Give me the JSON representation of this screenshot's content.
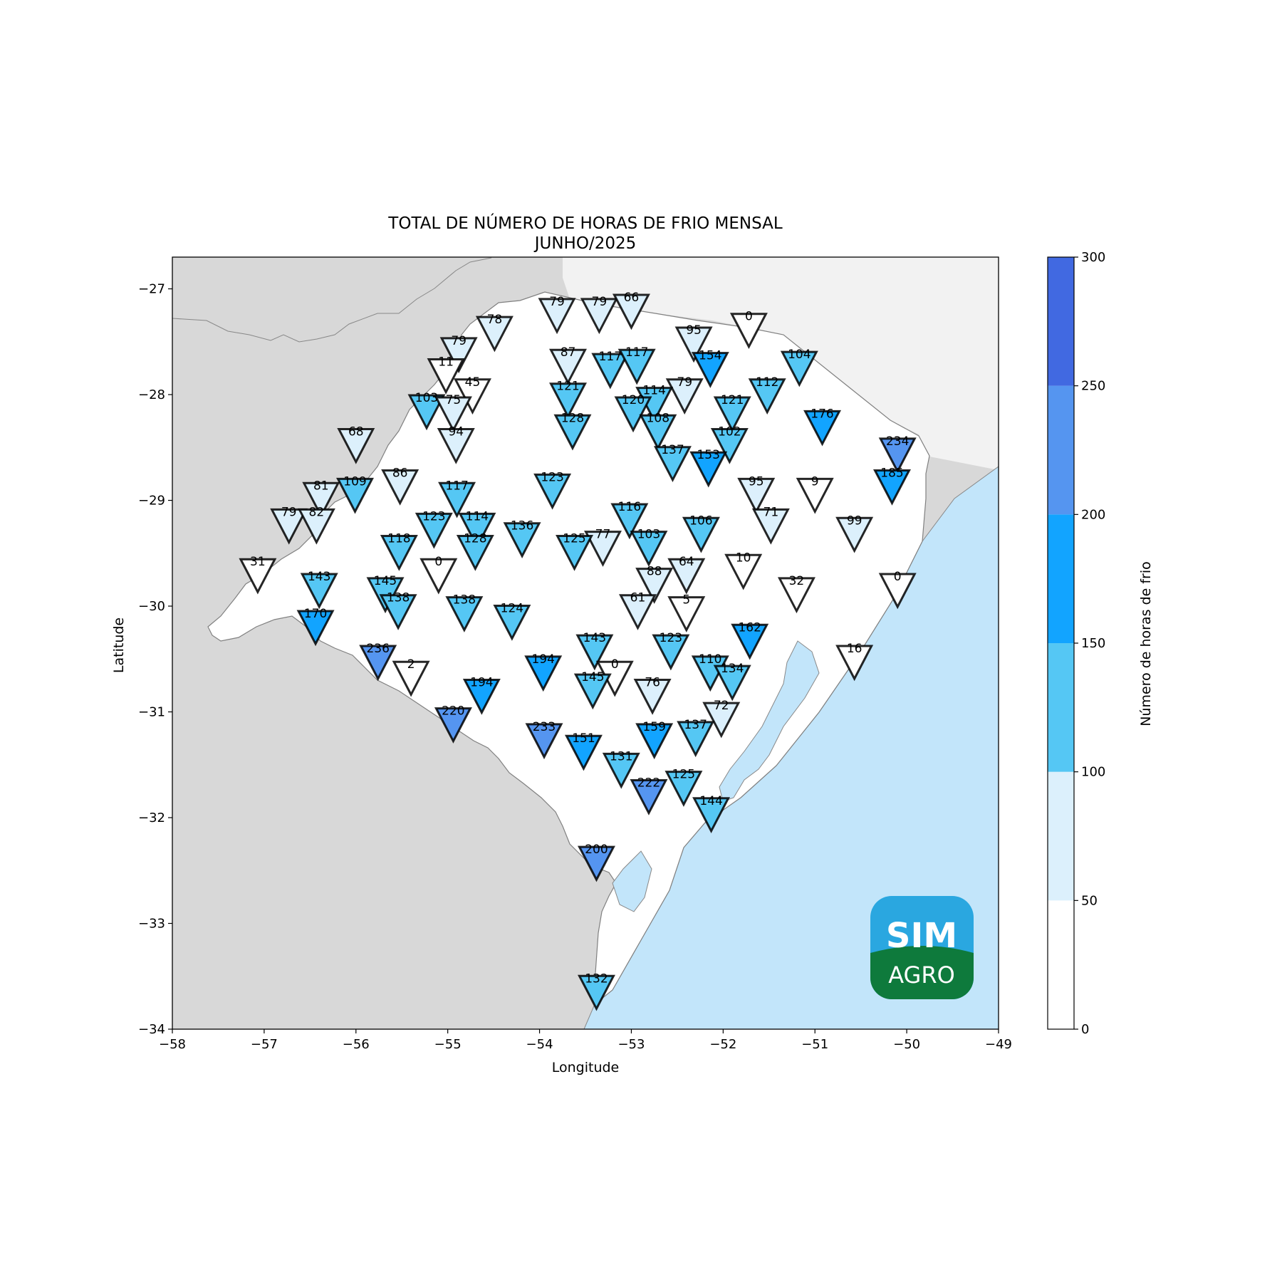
{
  "title_line1": "TOTAL DE NÚMERO DE HORAS DE FRIO MENSAL",
  "title_line2": "JUNHO/2025",
  "xlabel": "Longitude",
  "ylabel": "Latitude",
  "colorbar_label": "Número de horas de frio",
  "logo": {
    "top": "SIM",
    "bottom": "AGRO"
  },
  "colors": {
    "land_other": "#d8d8d8",
    "land_neighbor": "#f2f2f2",
    "ocean": "#c2e5fa",
    "state": "#ffffff",
    "logo_top": "#2aa7e0",
    "logo_bottom": "#0e7a3c"
  },
  "chart_data": {
    "type": "scatter",
    "xlim": [
      -58,
      -49
    ],
    "ylim": [
      -34,
      -26.7
    ],
    "x_ticks": [
      -58,
      -57,
      -56,
      -55,
      -54,
      -53,
      -52,
      -51,
      -50,
      -49
    ],
    "y_ticks": [
      -34,
      -33,
      -32,
      -31,
      -30,
      -29,
      -28,
      -27
    ],
    "x_tick_labels": [
      "−58",
      "−57",
      "−56",
      "−55",
      "−54",
      "−53",
      "−52",
      "−51",
      "−50",
      "−49"
    ],
    "y_tick_labels": [
      "−34",
      "−33",
      "−32",
      "−31",
      "−30",
      "−29",
      "−28",
      "−27"
    ],
    "marker": "inverted-triangle",
    "colorbar": {
      "bounds": [
        0,
        50,
        100,
        150,
        200,
        250,
        300
      ],
      "tick_labels": [
        "0",
        "50",
        "100",
        "150",
        "200",
        "250",
        "300"
      ],
      "colors": [
        "#ffffff",
        "#dcf0fc",
        "#55c7f4",
        "#12a4ff",
        "#5595f0",
        "#4169e1"
      ]
    },
    "points": [
      {
        "lon": -53.81,
        "lat": -27.2,
        "v": 79
      },
      {
        "lon": -53.35,
        "lat": -27.2,
        "v": 79
      },
      {
        "lon": -53.0,
        "lat": -27.16,
        "v": 66
      },
      {
        "lon": -54.49,
        "lat": -27.37,
        "v": 78
      },
      {
        "lon": -51.72,
        "lat": -27.34,
        "v": 0
      },
      {
        "lon": -52.32,
        "lat": -27.47,
        "v": 95
      },
      {
        "lon": -54.88,
        "lat": -27.57,
        "v": 79
      },
      {
        "lon": -53.69,
        "lat": -27.68,
        "v": 87
      },
      {
        "lon": -53.23,
        "lat": -27.72,
        "v": 117
      },
      {
        "lon": -52.94,
        "lat": -27.68,
        "v": 117
      },
      {
        "lon": -52.14,
        "lat": -27.71,
        "v": 154
      },
      {
        "lon": -51.17,
        "lat": -27.7,
        "v": 104
      },
      {
        "lon": -55.02,
        "lat": -27.77,
        "v": 11
      },
      {
        "lon": -54.73,
        "lat": -27.96,
        "v": 45
      },
      {
        "lon": -52.42,
        "lat": -27.96,
        "v": 79
      },
      {
        "lon": -51.52,
        "lat": -27.96,
        "v": 112
      },
      {
        "lon": -53.69,
        "lat": -28.0,
        "v": 121
      },
      {
        "lon": -52.75,
        "lat": -28.04,
        "v": 114
      },
      {
        "lon": -55.23,
        "lat": -28.11,
        "v": 103
      },
      {
        "lon": -54.94,
        "lat": -28.13,
        "v": 75
      },
      {
        "lon": -52.98,
        "lat": -28.13,
        "v": 120
      },
      {
        "lon": -51.9,
        "lat": -28.13,
        "v": 121
      },
      {
        "lon": -50.92,
        "lat": -28.26,
        "v": 176
      },
      {
        "lon": -53.64,
        "lat": -28.3,
        "v": 128
      },
      {
        "lon": -52.71,
        "lat": -28.3,
        "v": 108
      },
      {
        "lon": -56.0,
        "lat": -28.43,
        "v": 68
      },
      {
        "lon": -54.91,
        "lat": -28.43,
        "v": 94
      },
      {
        "lon": -51.93,
        "lat": -28.43,
        "v": 102
      },
      {
        "lon": -50.1,
        "lat": -28.52,
        "v": 234
      },
      {
        "lon": -52.55,
        "lat": -28.6,
        "v": 137
      },
      {
        "lon": -52.16,
        "lat": -28.65,
        "v": 153
      },
      {
        "lon": -55.52,
        "lat": -28.82,
        "v": 86
      },
      {
        "lon": -53.86,
        "lat": -28.86,
        "v": 123
      },
      {
        "lon": -50.16,
        "lat": -28.82,
        "v": 185
      },
      {
        "lon": -56.01,
        "lat": -28.9,
        "v": 109
      },
      {
        "lon": -51.64,
        "lat": -28.9,
        "v": 95
      },
      {
        "lon": -51.0,
        "lat": -28.9,
        "v": 9
      },
      {
        "lon": -56.38,
        "lat": -28.94,
        "v": 81
      },
      {
        "lon": -54.9,
        "lat": -28.94,
        "v": 117
      },
      {
        "lon": -53.02,
        "lat": -29.14,
        "v": 116
      },
      {
        "lon": -56.73,
        "lat": -29.19,
        "v": 79
      },
      {
        "lon": -56.43,
        "lat": -29.19,
        "v": 82
      },
      {
        "lon": -51.48,
        "lat": -29.19,
        "v": 71
      },
      {
        "lon": -55.15,
        "lat": -29.23,
        "v": 123
      },
      {
        "lon": -54.68,
        "lat": -29.23,
        "v": 114
      },
      {
        "lon": -52.24,
        "lat": -29.27,
        "v": 106
      },
      {
        "lon": -50.57,
        "lat": -29.27,
        "v": 99
      },
      {
        "lon": -54.19,
        "lat": -29.32,
        "v": 136
      },
      {
        "lon": -53.31,
        "lat": -29.4,
        "v": 77
      },
      {
        "lon": -52.81,
        "lat": -29.4,
        "v": 103
      },
      {
        "lon": -55.53,
        "lat": -29.44,
        "v": 118
      },
      {
        "lon": -54.7,
        "lat": -29.44,
        "v": 128
      },
      {
        "lon": -53.62,
        "lat": -29.44,
        "v": 125
      },
      {
        "lon": -57.07,
        "lat": -29.66,
        "v": 31
      },
      {
        "lon": -55.1,
        "lat": -29.66,
        "v": 0
      },
      {
        "lon": -52.4,
        "lat": -29.66,
        "v": 64
      },
      {
        "lon": -51.78,
        "lat": -29.62,
        "v": 10
      },
      {
        "lon": -52.75,
        "lat": -29.75,
        "v": 88
      },
      {
        "lon": -56.4,
        "lat": -29.8,
        "v": 143
      },
      {
        "lon": -55.68,
        "lat": -29.84,
        "v": 145
      },
      {
        "lon": -51.2,
        "lat": -29.84,
        "v": 32
      },
      {
        "lon": -50.1,
        "lat": -29.8,
        "v": 0
      },
      {
        "lon": -55.54,
        "lat": -30.0,
        "v": 138
      },
      {
        "lon": -54.82,
        "lat": -30.02,
        "v": 138
      },
      {
        "lon": -52.93,
        "lat": -30.0,
        "v": 61
      },
      {
        "lon": -52.4,
        "lat": -30.02,
        "v": 5
      },
      {
        "lon": -54.3,
        "lat": -30.1,
        "v": 124
      },
      {
        "lon": -56.44,
        "lat": -30.15,
        "v": 170
      },
      {
        "lon": -53.4,
        "lat": -30.38,
        "v": 143
      },
      {
        "lon": -52.57,
        "lat": -30.38,
        "v": 123
      },
      {
        "lon": -51.71,
        "lat": -30.28,
        "v": 162
      },
      {
        "lon": -55.76,
        "lat": -30.48,
        "v": 236
      },
      {
        "lon": -50.57,
        "lat": -30.48,
        "v": 16
      },
      {
        "lon": -55.4,
        "lat": -30.63,
        "v": 2
      },
      {
        "lon": -53.96,
        "lat": -30.58,
        "v": 194
      },
      {
        "lon": -53.18,
        "lat": -30.63,
        "v": 0
      },
      {
        "lon": -52.14,
        "lat": -30.58,
        "v": 110
      },
      {
        "lon": -51.9,
        "lat": -30.67,
        "v": 134
      },
      {
        "lon": -54.63,
        "lat": -30.8,
        "v": 194
      },
      {
        "lon": -53.42,
        "lat": -30.75,
        "v": 145
      },
      {
        "lon": -52.77,
        "lat": -30.8,
        "v": 76
      },
      {
        "lon": -52.02,
        "lat": -31.02,
        "v": 72
      },
      {
        "lon": -54.94,
        "lat": -31.07,
        "v": 220
      },
      {
        "lon": -53.95,
        "lat": -31.22,
        "v": 233
      },
      {
        "lon": -52.75,
        "lat": -31.22,
        "v": 159
      },
      {
        "lon": -52.3,
        "lat": -31.2,
        "v": 137
      },
      {
        "lon": -53.52,
        "lat": -31.33,
        "v": 151
      },
      {
        "lon": -53.11,
        "lat": -31.5,
        "v": 131
      },
      {
        "lon": -52.43,
        "lat": -31.67,
        "v": 125
      },
      {
        "lon": -52.81,
        "lat": -31.75,
        "v": 222
      },
      {
        "lon": -52.13,
        "lat": -31.92,
        "v": 144
      },
      {
        "lon": -53.38,
        "lat": -32.38,
        "v": 200
      },
      {
        "lon": -53.38,
        "lat": -33.6,
        "v": 132
      }
    ]
  }
}
